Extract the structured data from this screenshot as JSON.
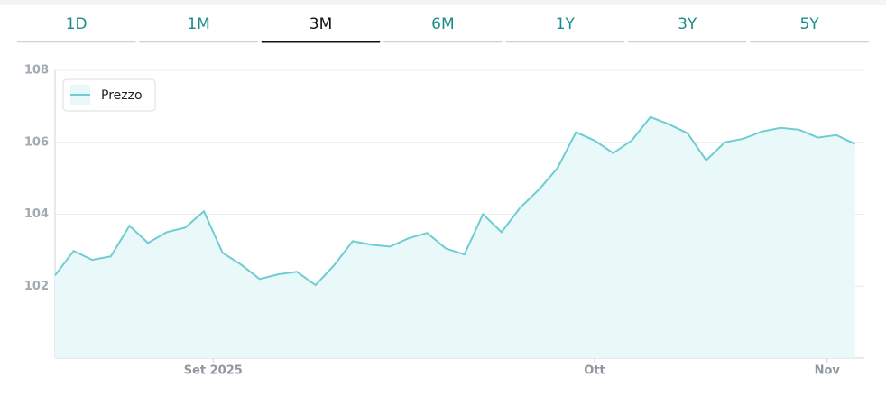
{
  "tabs": {
    "items": [
      "1D",
      "1M",
      "3M",
      "6M",
      "1Y",
      "3Y",
      "5Y"
    ],
    "active": 2
  },
  "chart_data": {
    "type": "line",
    "color": "#6ecdd3",
    "fill": "#e9f8f8",
    "grid": true,
    "legend": "top-left",
    "x": [
      0,
      1,
      2,
      3,
      4,
      5,
      6,
      7,
      8,
      9,
      10,
      11,
      12,
      13,
      14,
      15,
      16,
      17,
      18,
      19,
      20,
      21,
      22,
      23,
      24,
      25,
      26,
      27,
      28,
      29,
      30,
      31,
      32,
      33,
      34,
      35,
      36,
      37,
      38,
      39,
      40,
      41,
      42,
      43
    ],
    "xlim": [
      0,
      43.5
    ],
    "xticks": [
      {
        "value": 8.5,
        "label": "Set 2025"
      },
      {
        "value": 29,
        "label": "Ott"
      },
      {
        "value": 41.5,
        "label": "Nov"
      }
    ],
    "ylim": [
      100,
      108
    ],
    "yticks": [
      102,
      104,
      106,
      108
    ],
    "series": [
      {
        "name": "Prezzo",
        "color": "#6ecdd3",
        "values": [
          102.3,
          102.98,
          102.73,
          102.83,
          103.68,
          103.2,
          103.5,
          103.63,
          104.08,
          102.93,
          102.6,
          102.2,
          102.33,
          102.4,
          102.03,
          102.58,
          103.25,
          103.15,
          103.1,
          103.33,
          103.48,
          103.05,
          102.88,
          104.0,
          103.5,
          104.18,
          104.68,
          105.28,
          106.28,
          106.05,
          105.7,
          106.05,
          106.7,
          106.5,
          106.25,
          105.5,
          106.0,
          106.1,
          106.3,
          106.4,
          106.35,
          106.13,
          106.2,
          105.95
        ]
      }
    ]
  }
}
